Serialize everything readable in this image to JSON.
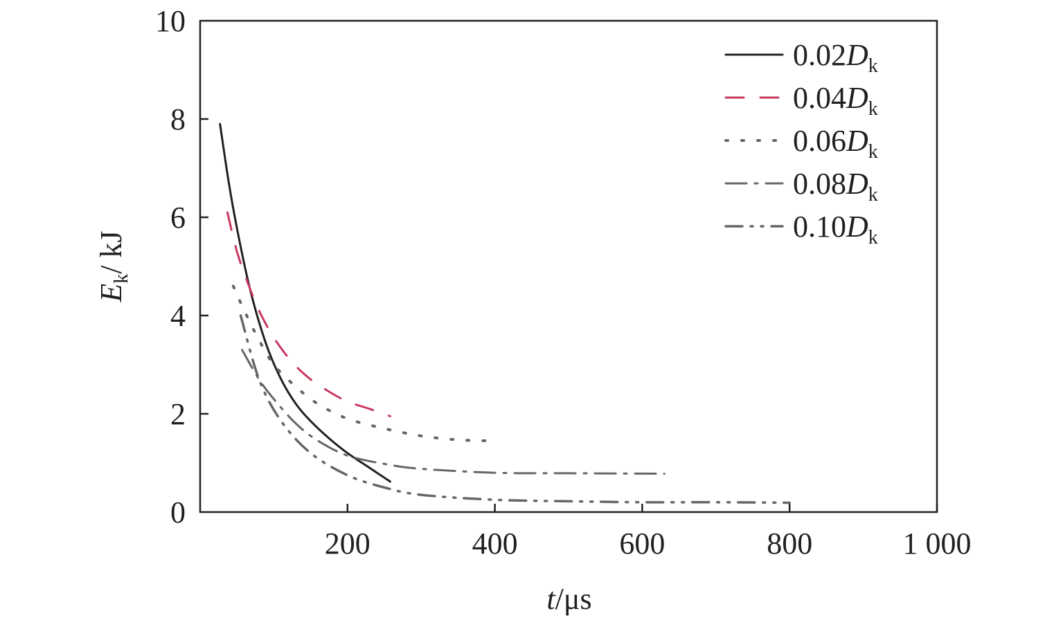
{
  "chart_data": {
    "type": "line",
    "xlabel": {
      "var": "t",
      "unit": "/μs"
    },
    "ylabel": {
      "var": "E",
      "sub": "k",
      "unit": "/ kJ"
    },
    "xlim": [
      0,
      1000
    ],
    "ylim": [
      0,
      10
    ],
    "xticks": [
      200,
      400,
      600,
      800,
      1000
    ],
    "xtick_labels": [
      "200",
      "400",
      "600",
      "800",
      "1 000"
    ],
    "yticks": [
      0,
      2,
      4,
      6,
      8,
      10
    ],
    "ytick_labels": [
      "0",
      "2",
      "4",
      "6",
      "8",
      "10"
    ],
    "grid": false,
    "legend_position": "top-right",
    "series": [
      {
        "name": "0.02D_k",
        "label": {
          "num": "0.02",
          "var": "D",
          "sub": "k"
        },
        "style": "solid",
        "color": "#231f20",
        "x": [
          27,
          40,
          55,
          70,
          90,
          110,
          130,
          150,
          175,
          200,
          230,
          258
        ],
        "y": [
          7.9,
          6.6,
          5.4,
          4.4,
          3.4,
          2.7,
          2.2,
          1.85,
          1.5,
          1.2,
          0.9,
          0.62
        ]
      },
      {
        "name": "0.04D_k",
        "label": {
          "num": "0.04",
          "var": "D",
          "sub": "k"
        },
        "style": "dashed",
        "color": "#c8385f",
        "x": [
          37,
          50,
          65,
          80,
          100,
          125,
          150,
          175,
          200,
          230,
          258
        ],
        "y": [
          6.1,
          5.3,
          4.65,
          4.1,
          3.55,
          3.05,
          2.7,
          2.45,
          2.25,
          2.1,
          1.95
        ]
      },
      {
        "name": "0.06D_k",
        "label": {
          "num": "0.06",
          "var": "D",
          "sub": "k"
        },
        "style": "dotted",
        "color": "#666666",
        "x": [
          45,
          60,
          80,
          100,
          130,
          160,
          200,
          250,
          300,
          350,
          395
        ],
        "y": [
          4.6,
          4.1,
          3.5,
          3.0,
          2.55,
          2.2,
          1.9,
          1.7,
          1.55,
          1.47,
          1.45
        ]
      },
      {
        "name": "0.08D_k",
        "label": {
          "num": "0.08",
          "var": "D",
          "sub": "k"
        },
        "style": "dashdot",
        "color": "#666666",
        "x": [
          57,
          80,
          100,
          130,
          160,
          200,
          250,
          300,
          400,
          500,
          630
        ],
        "y": [
          3.3,
          2.7,
          2.3,
          1.8,
          1.45,
          1.15,
          0.98,
          0.88,
          0.8,
          0.79,
          0.78
        ]
      },
      {
        "name": "0.10D_k",
        "label": {
          "num": "0.10",
          "var": "D",
          "sub": "k"
        },
        "style": "dashdotdot",
        "color": "#666666",
        "x": [
          55,
          80,
          110,
          150,
          200,
          250,
          300,
          400,
          500,
          600,
          700,
          800
        ],
        "y": [
          4.0,
          2.7,
          1.85,
          1.2,
          0.75,
          0.5,
          0.35,
          0.25,
          0.22,
          0.2,
          0.2,
          0.19
        ]
      }
    ]
  }
}
